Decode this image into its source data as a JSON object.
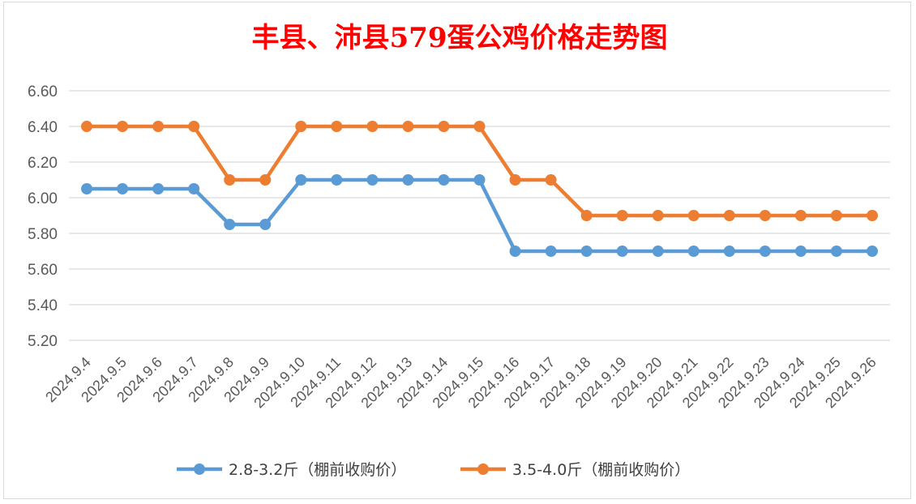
{
  "chart_data": {
    "type": "line",
    "title": "丰县、沛县579蛋公鸡价格走势图",
    "xlabel": "",
    "ylabel": "",
    "categories": [
      "2024.9.4",
      "2024.9.5",
      "2024.9.6",
      "2024.9.7",
      "2024.9.8",
      "2024.9.9",
      "2024.9.10",
      "2024.9.11",
      "2024.9.12",
      "2024.9.13",
      "2024.9.14",
      "2024.9.15",
      "2024.9.16",
      "2024.9.17",
      "2024.9.18",
      "2024.9.19",
      "2024.9.20",
      "2024.9.21",
      "2024.9.22",
      "2024.9.23",
      "2024.9.24",
      "2024.9.25",
      "2024.9.26"
    ],
    "ylim": [
      5.2,
      6.6
    ],
    "yticks": [
      "6.60",
      "6.40",
      "6.20",
      "6.00",
      "5.80",
      "5.60",
      "5.40",
      "5.20"
    ],
    "ytick_values": [
      6.6,
      6.4,
      6.2,
      6.0,
      5.8,
      5.6,
      5.4,
      5.2
    ],
    "grid": true,
    "legend_position": "bottom",
    "series": [
      {
        "name": "2.8-3.2斤（棚前收购价）",
        "color": "#5b9bd5",
        "values": [
          6.05,
          6.05,
          6.05,
          6.05,
          5.85,
          5.85,
          6.1,
          6.1,
          6.1,
          6.1,
          6.1,
          6.1,
          5.7,
          5.7,
          5.7,
          5.7,
          5.7,
          5.7,
          5.7,
          5.7,
          5.7,
          5.7,
          5.7
        ]
      },
      {
        "name": "3.5-4.0斤（棚前收购价）",
        "color": "#ed7d31",
        "values": [
          6.4,
          6.4,
          6.4,
          6.4,
          6.1,
          6.1,
          6.4,
          6.4,
          6.4,
          6.4,
          6.4,
          6.4,
          6.1,
          6.1,
          5.9,
          5.9,
          5.9,
          5.9,
          5.9,
          5.9,
          5.9,
          5.9,
          5.9
        ]
      }
    ]
  },
  "colors": {
    "title": "#ff0000",
    "grid": "#d9d9d9",
    "axis_text": "#595959"
  }
}
